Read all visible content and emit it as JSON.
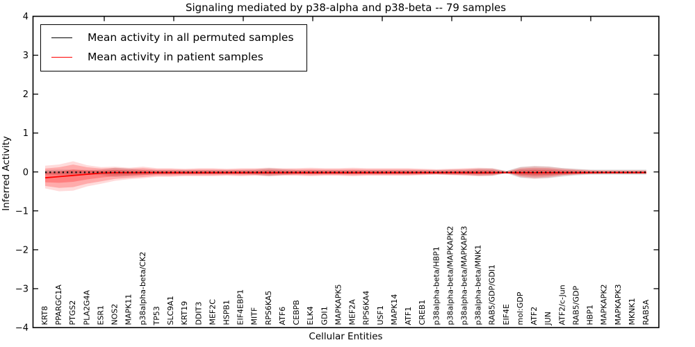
{
  "chart_data": {
    "type": "line",
    "title": "Signaling mediated by p38-alpha and p38-beta -- 79 samples",
    "xlabel": "Cellular Entities",
    "ylabel": "Inferred Activity",
    "ylim": [
      -4,
      4
    ],
    "yticks": [
      4,
      3,
      2,
      1,
      0,
      -1,
      -2,
      -3,
      -4
    ],
    "ytick_labels": [
      "4",
      "3",
      "2",
      "1",
      "0",
      "−1",
      "−2",
      "−3",
      "−4"
    ],
    "grid": false,
    "legend_position": "upper left",
    "categories": [
      "KRT8",
      "PPARGC1A",
      "PTGS2",
      "PLA2G4A",
      "ESR1",
      "NOS2",
      "MAPK11",
      "p38alpha-beta/CK2",
      "TP53",
      "SLC9A1",
      "KRT19",
      "DDIT3",
      "MEF2C",
      "HSPB1",
      "EIF4EBP1",
      "MITF",
      "RPS6KA5",
      "ATF6",
      "CEBPB",
      "ELK4",
      "GDI1",
      "MAPKAPK5",
      "MEF2A",
      "RPS6KA4",
      "USF1",
      "MAPK14",
      "ATF1",
      "CREB1",
      "p38alpha-beta/HBP1",
      "p38alpha-beta/MAPKAPK2",
      "p38alpha-beta/MAPKAPK3",
      "p38alpha-beta/MNK1",
      "RAB5/GDP/GDI1",
      "EIF4E",
      "mol:GDP",
      "ATF2",
      "JUN",
      "ATF2/c-Jun",
      "RAB5/GDP",
      "HBP1",
      "MAPKAPK2",
      "MAPKAPK3",
      "MKNK1",
      "RAB5A"
    ],
    "series": [
      {
        "name": "Mean activity in all permuted samples",
        "color": "#000000",
        "line_style": "dotted",
        "values": [
          -0.01,
          -0.01,
          -0.01,
          -0.01,
          -0.01,
          -0.01,
          -0.01,
          -0.01,
          -0.01,
          -0.01,
          -0.01,
          -0.01,
          -0.01,
          -0.01,
          -0.01,
          -0.01,
          -0.01,
          -0.01,
          -0.01,
          -0.01,
          -0.01,
          -0.01,
          -0.01,
          -0.01,
          -0.01,
          -0.01,
          -0.01,
          -0.01,
          -0.01,
          -0.01,
          -0.01,
          -0.01,
          -0.01,
          -0.01,
          -0.01,
          -0.01,
          -0.01,
          -0.01,
          -0.01,
          -0.01,
          -0.01,
          -0.01,
          -0.01,
          -0.01
        ],
        "band_high": [
          0.05,
          0.06,
          0.06,
          0.05,
          0.06,
          0.11,
          0.09,
          0.06,
          0.05,
          0.05,
          0.05,
          0.05,
          0.05,
          0.05,
          0.05,
          0.06,
          0.1,
          0.07,
          0.05,
          0.05,
          0.05,
          0.05,
          0.05,
          0.05,
          0.05,
          0.05,
          0.05,
          0.05,
          0.05,
          0.06,
          0.06,
          0.09,
          0.09,
          0.03,
          0.13,
          0.15,
          0.14,
          0.1,
          0.08,
          0.06,
          0.06,
          0.06,
          0.06,
          0.06
        ],
        "band_low": [
          -0.07,
          -0.08,
          -0.08,
          -0.07,
          -0.08,
          -0.13,
          -0.11,
          -0.08,
          -0.06,
          -0.06,
          -0.06,
          -0.06,
          -0.06,
          -0.06,
          -0.06,
          -0.07,
          -0.11,
          -0.08,
          -0.06,
          -0.06,
          -0.06,
          -0.06,
          -0.06,
          -0.06,
          -0.06,
          -0.06,
          -0.06,
          -0.06,
          -0.06,
          -0.07,
          -0.07,
          -0.1,
          -0.1,
          -0.04,
          -0.15,
          -0.17,
          -0.16,
          -0.12,
          -0.09,
          -0.07,
          -0.07,
          -0.07,
          -0.07,
          -0.07
        ],
        "band_color": "rgba(0,0,0,0.12)"
      },
      {
        "name": "Mean activity in patient samples",
        "color": "#ff0000",
        "line_style": "solid",
        "values": [
          -0.15,
          -0.12,
          -0.09,
          -0.06,
          -0.03,
          -0.02,
          -0.02,
          -0.02,
          -0.02,
          -0.02,
          -0.02,
          -0.02,
          -0.02,
          -0.02,
          -0.02,
          -0.02,
          -0.02,
          -0.02,
          -0.02,
          -0.02,
          -0.02,
          -0.02,
          -0.02,
          -0.02,
          -0.02,
          -0.02,
          -0.02,
          -0.02,
          -0.02,
          -0.02,
          -0.02,
          -0.02,
          -0.02,
          -0.02,
          -0.02,
          -0.02,
          -0.02,
          -0.02,
          -0.02,
          -0.02,
          -0.02,
          -0.02,
          -0.02,
          -0.02
        ],
        "band_high": [
          0.09,
          0.12,
          0.19,
          0.12,
          0.09,
          0.1,
          0.08,
          0.1,
          0.07,
          0.07,
          0.06,
          0.07,
          0.07,
          0.06,
          0.07,
          0.07,
          0.08,
          0.07,
          0.07,
          0.08,
          0.07,
          0.07,
          0.08,
          0.07,
          0.07,
          0.07,
          0.07,
          0.06,
          0.05,
          0.06,
          0.07,
          0.08,
          0.07,
          0.01,
          0.09,
          0.11,
          0.1,
          0.07,
          0.05,
          0.035,
          0.03,
          0.03,
          0.03,
          0.03
        ],
        "band_low": [
          -0.36,
          -0.41,
          -0.39,
          -0.3,
          -0.24,
          -0.18,
          -0.15,
          -0.13,
          -0.1,
          -0.1,
          -0.09,
          -0.09,
          -0.09,
          -0.08,
          -0.09,
          -0.08,
          -0.09,
          -0.08,
          -0.08,
          -0.09,
          -0.08,
          -0.08,
          -0.09,
          -0.08,
          -0.08,
          -0.08,
          -0.08,
          -0.07,
          -0.06,
          -0.07,
          -0.08,
          -0.09,
          -0.08,
          -0.02,
          -0.11,
          -0.14,
          -0.12,
          -0.08,
          -0.06,
          -0.045,
          -0.04,
          -0.04,
          -0.04,
          -0.04
        ],
        "band_color": "rgba(255,0,0,0.22)"
      }
    ]
  }
}
